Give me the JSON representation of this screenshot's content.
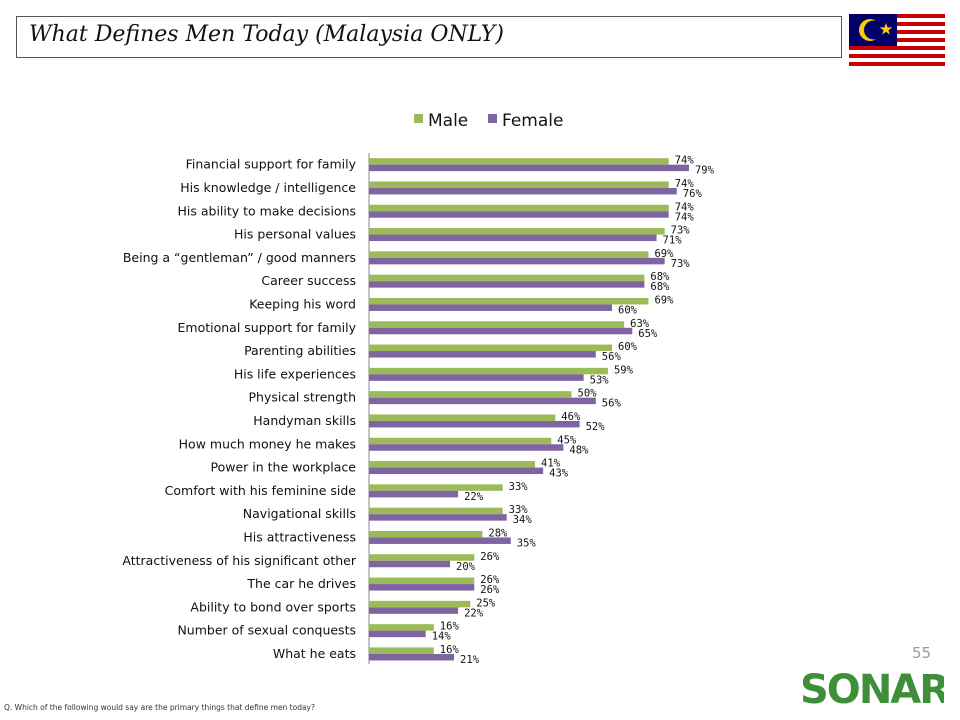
{
  "header": {
    "title": "What Defines Men Today (Malaysia ONLY)"
  },
  "page_number": "55",
  "footnote": "Q. Which of the following would say are the primary things that define men today?",
  "logo_text": "SONAR",
  "colors": {
    "male": "#9bbb59",
    "female": "#8064a2",
    "flag_red": "#cc0001",
    "flag_blue": "#010066",
    "flag_yellow": "#ffcc00",
    "logo_green": "#3f8f3a"
  },
  "chart_data": {
    "type": "bar",
    "orientation": "horizontal",
    "legend_position": "top",
    "grid": false,
    "xlim": [
      0,
      100
    ],
    "categories": [
      "Financial support for family",
      "His knowledge / intelligence",
      "His ability to make decisions",
      "His personal values",
      "Being a “gentleman” / good manners",
      "Career success",
      "Keeping his word",
      "Emotional support for family",
      "Parenting abilities",
      "His life experiences",
      "Physical strength",
      "Handyman skills",
      "How much money he makes",
      "Power in the workplace",
      "Comfort with his feminine side",
      "Navigational skills",
      "His attractiveness",
      "Attractiveness of his significant other",
      "The car he drives",
      "Ability to bond over sports",
      "Number of sexual conquests",
      "What he eats"
    ],
    "series": [
      {
        "name": "Male",
        "values": [
          74,
          74,
          74,
          73,
          69,
          68,
          69,
          63,
          60,
          59,
          50,
          46,
          45,
          41,
          33,
          33,
          28,
          26,
          26,
          25,
          16,
          16
        ]
      },
      {
        "name": "Female",
        "values": [
          79,
          76,
          74,
          71,
          73,
          68,
          60,
          65,
          56,
          53,
          56,
          52,
          48,
          43,
          22,
          34,
          35,
          20,
          26,
          22,
          14,
          21
        ]
      }
    ],
    "value_suffix": "%"
  }
}
